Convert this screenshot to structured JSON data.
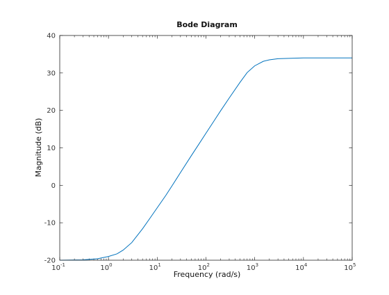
{
  "chart_data": {
    "type": "line",
    "title": "Bode Diagram",
    "xlabel": "Frequency  (rad/s)",
    "ylabel": "Magnitude (dB)",
    "xscale": "log",
    "xlim": [
      0.1,
      100000
    ],
    "ylim": [
      -20,
      40
    ],
    "xticks": [
      {
        "base": "10",
        "exp": "-1"
      },
      {
        "base": "10",
        "exp": "0"
      },
      {
        "base": "10",
        "exp": "1"
      },
      {
        "base": "10",
        "exp": "2"
      },
      {
        "base": "10",
        "exp": "3"
      },
      {
        "base": "10",
        "exp": "4"
      },
      {
        "base": "10",
        "exp": "5"
      }
    ],
    "yticks": [
      "40",
      "30",
      "20",
      "10",
      "0",
      "-10",
      "-20"
    ],
    "grid": false,
    "line_color": "#0072bd",
    "series": [
      {
        "x": [
          0.1,
          0.3,
          0.6,
          1.0,
          1.5,
          2,
          3,
          5,
          7,
          10,
          15,
          20,
          30,
          50,
          70,
          100,
          150,
          200,
          300,
          500,
          700,
          1000,
          1500,
          2000,
          3000,
          5000,
          10000,
          100000
        ],
        "y": [
          -20.0,
          -19.9,
          -19.6,
          -19.0,
          -18.3,
          -17.3,
          -15.3,
          -11.6,
          -8.9,
          -6.0,
          -2.7,
          -0.2,
          3.4,
          7.9,
          10.8,
          13.9,
          17.4,
          19.9,
          23.3,
          27.5,
          30.1,
          31.9,
          33.1,
          33.5,
          33.8,
          33.9,
          34.0,
          34.0
        ]
      }
    ]
  }
}
